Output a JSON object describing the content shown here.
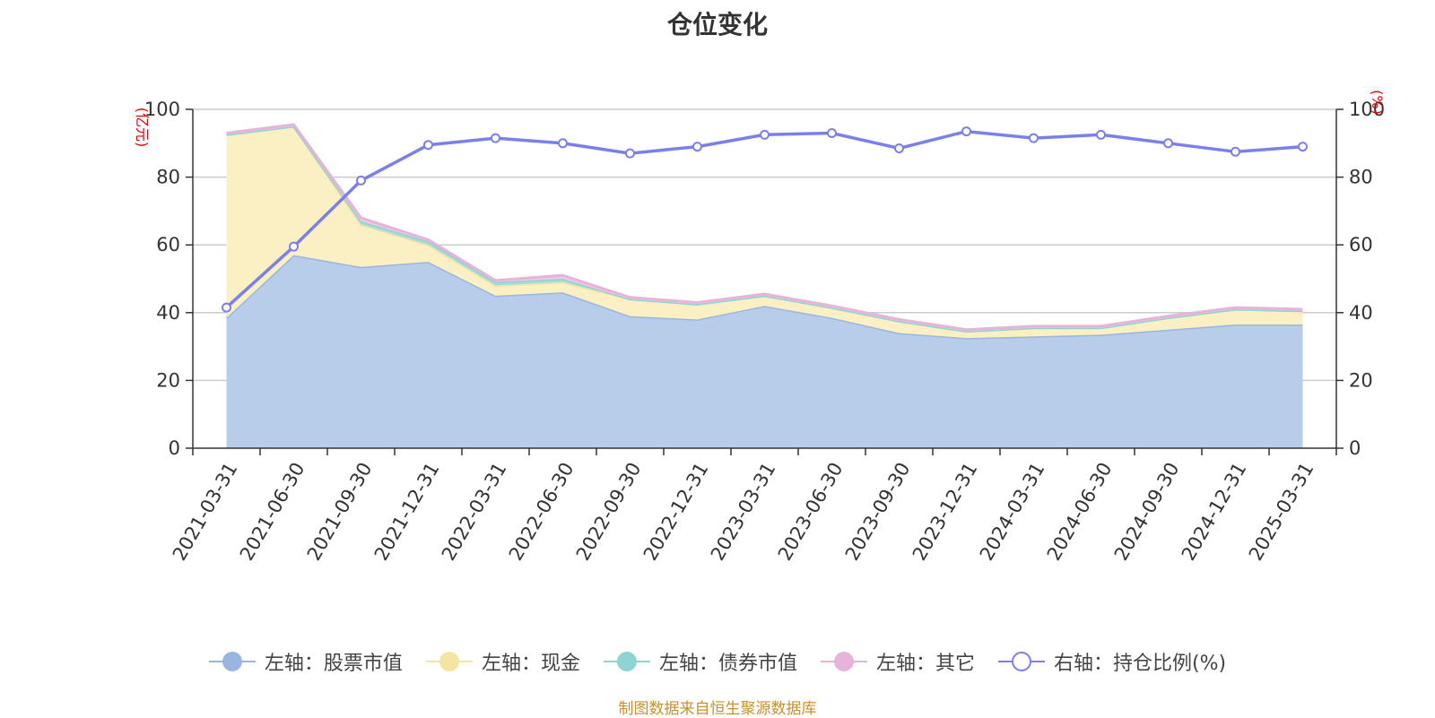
{
  "chart_data": {
    "type": "area",
    "title": "仓位变化",
    "categories": [
      "2021-03-31",
      "2021-06-30",
      "2021-09-30",
      "2021-12-31",
      "2022-03-31",
      "2022-06-30",
      "2022-09-30",
      "2022-12-31",
      "2023-03-31",
      "2023-06-30",
      "2023-09-30",
      "2023-12-31",
      "2024-03-31",
      "2024-06-30",
      "2024-09-30",
      "2024-12-31",
      "2025-03-31"
    ],
    "left_axis": {
      "unit": "(亿元)",
      "ylim": [
        0,
        100
      ],
      "ticks": [
        0,
        20,
        40,
        60,
        80,
        100
      ]
    },
    "right_axis": {
      "unit": "(%)",
      "ylim": [
        0,
        100
      ],
      "ticks": [
        0,
        20,
        40,
        60,
        80,
        100
      ]
    },
    "series": [
      {
        "name": "左轴：股票市值",
        "axis": "left",
        "stacked": true,
        "color": "#9ab6e0",
        "fill": "#b8cdea",
        "values": [
          38.5,
          57,
          53.5,
          55,
          45,
          46,
          39,
          38,
          42,
          38.5,
          34,
          32.5,
          33,
          33.5,
          35,
          36.5,
          36.5
        ]
      },
      {
        "name": "左轴：现金",
        "axis": "left",
        "stacked": true,
        "color": "#f6e4a2",
        "fill": "#fbf0c3",
        "values": [
          54,
          38,
          12.5,
          5,
          3,
          3,
          5,
          4.5,
          3,
          3,
          3.5,
          2,
          2.5,
          2,
          3.5,
          4.5,
          4
        ]
      },
      {
        "name": "左轴：债券市值",
        "axis": "left",
        "stacked": true,
        "color": "#8fd3d3",
        "fill": "#a9ddd8",
        "values": [
          0,
          0,
          1,
          1,
          1,
          1,
          0,
          0,
          0,
          0,
          0,
          0,
          0,
          0,
          0,
          0,
          0
        ]
      },
      {
        "name": "左轴：其它",
        "axis": "left",
        "stacked": true,
        "color": "#e6b3d9",
        "fill": "#f0cbe5",
        "values": [
          0.5,
          0.5,
          1,
          0.5,
          0.5,
          1,
          0.5,
          0.5,
          0.5,
          0.5,
          0.5,
          0.5,
          0.5,
          0.5,
          0.5,
          0.5,
          0.5
        ]
      },
      {
        "name": "右轴：持仓比例(%)",
        "axis": "right",
        "type": "line",
        "color": "#7b7fea",
        "values": [
          41.5,
          59.5,
          79,
          89.5,
          91.5,
          90,
          87,
          89,
          92.5,
          93,
          88.5,
          93.5,
          91.5,
          92.5,
          90,
          87.5,
          89
        ]
      }
    ],
    "grid": true,
    "legend_position": "bottom",
    "source_note": "制图数据来自恒生聚源数据库"
  }
}
